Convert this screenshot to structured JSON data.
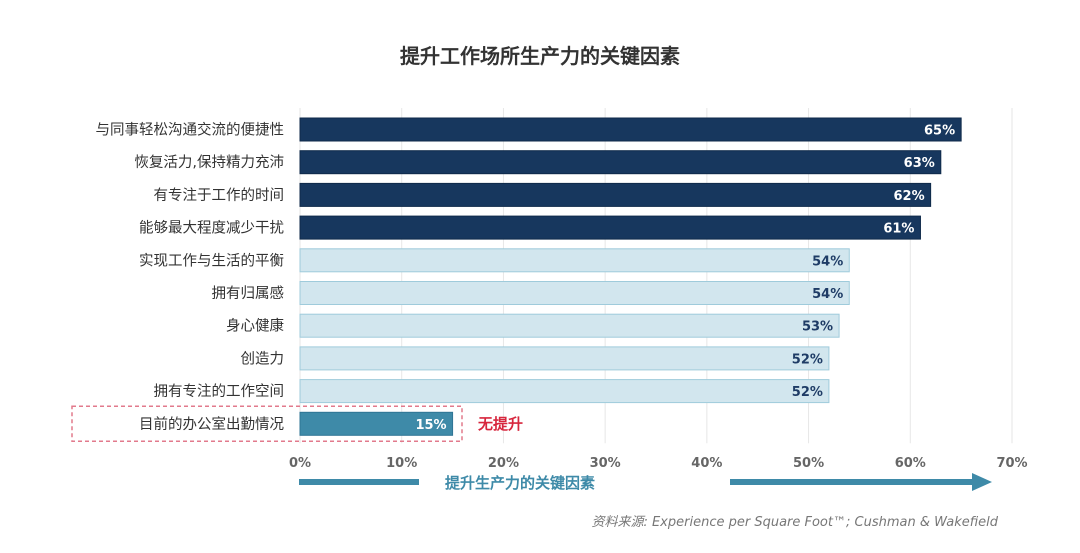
{
  "chart_data": {
    "type": "bar",
    "orientation": "horizontal",
    "title": "提升工作场所生产力的关键因素",
    "categories": [
      "与同事轻松沟通交流的便捷性",
      "恢复活力，保持精力充沛",
      "有专注于工作的时间",
      "能够最大程度减少干扰",
      "实现工作与生活的平衡",
      "拥有归属感",
      "身心健康",
      "创造力",
      "拥有专注的工作空间",
      "目前的办公室出勤情况"
    ],
    "display_labels": [
      "与同事轻松沟通交流的便捷性",
      "恢复活力,保持精力充沛",
      "有专注于工作的时间",
      "能够最大程度减少干扰",
      "实现工作与生活的平衡",
      "拥有归属感",
      "身心健康",
      "创造力",
      "拥有专注的工作空间",
      "目前的办公室出勤情况"
    ],
    "values": [
      65,
      63,
      62,
      61,
      54,
      54,
      53,
      52,
      52,
      15
    ],
    "value_labels": [
      "65%",
      "63%",
      "62%",
      "61%",
      "54%",
      "54%",
      "53%",
      "52%",
      "52%",
      "15%"
    ],
    "groups": [
      "top",
      "top",
      "top",
      "top",
      "mid",
      "mid",
      "mid",
      "mid",
      "mid",
      "current"
    ],
    "xlim": [
      0,
      70
    ],
    "xticks": [
      0,
      10,
      20,
      30,
      40,
      50,
      60,
      70
    ],
    "xtick_labels": [
      "0%",
      "10%",
      "20%",
      "30%",
      "40%",
      "50%",
      "60%",
      "70%"
    ],
    "grid": true,
    "annotation": "无提升",
    "arrow_label": "提升生产力的关键因素",
    "colors": {
      "top": "#17375e",
      "mid": "#d2e6ee",
      "mid_border": "#9fcbdb",
      "current": "#3e8aa8",
      "annotation": "#d7263d",
      "arrow": "#3e8aa8",
      "grid": "#e6e6e6"
    }
  },
  "source": "资料来源: Experience per Square Foot™; Cushman & Wakefield"
}
